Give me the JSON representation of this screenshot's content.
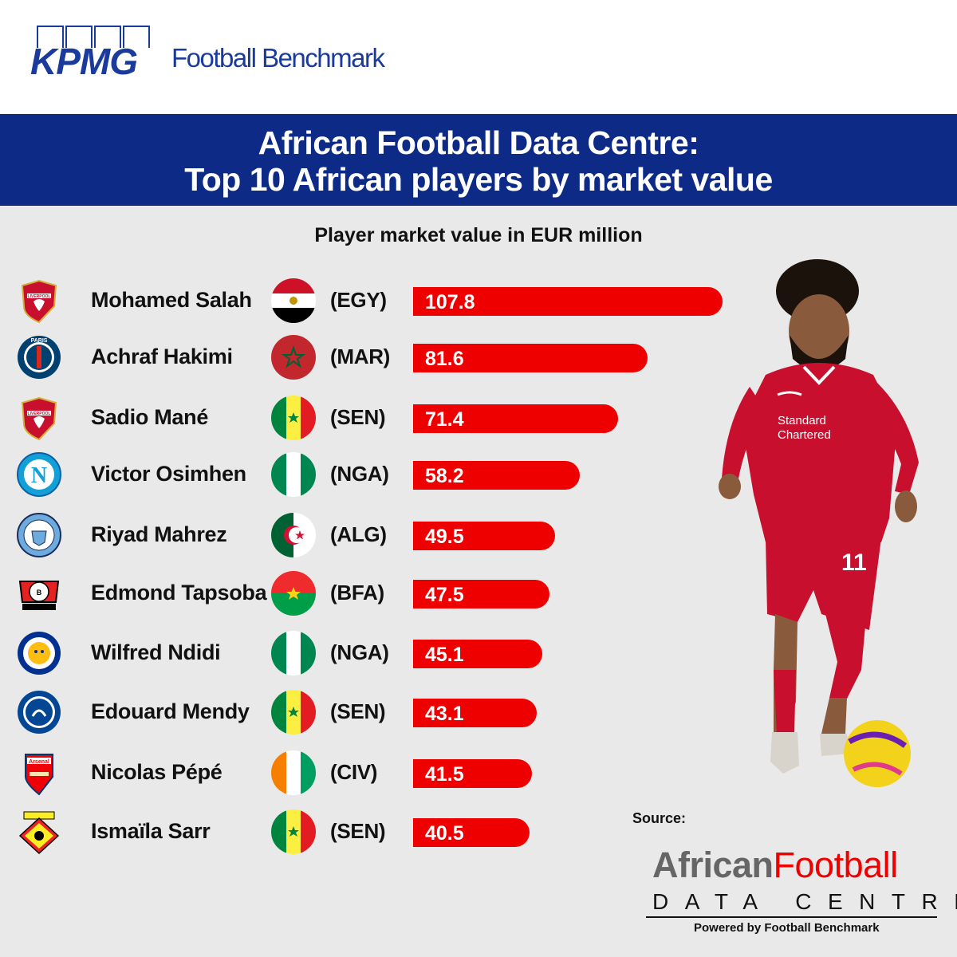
{
  "header": {
    "kpmg_logo_text": "KPMG",
    "brand_text": "Football Benchmark"
  },
  "banner": {
    "title_line1": "African Football Data Centre:",
    "title_line2": "Top 10 African players by market value"
  },
  "colors": {
    "bar": "#ee0000",
    "banner": "#0d2a86",
    "background": "#e9e9e9",
    "brand_blue": "#1a3a9c"
  },
  "chart_data": {
    "type": "bar",
    "orientation": "horizontal",
    "title": "Player market value in EUR million",
    "categories": [
      "Mohamed Salah",
      "Achraf Hakimi",
      "Sadio Mané",
      "Victor Osimhen",
      "Riyad Mahrez",
      "Edmond Tapsoba",
      "Wilfred Ndidi",
      "Edouard Mendy",
      "Nicolas Pépé",
      "Ismaïla Sarr"
    ],
    "values": [
      107.8,
      81.6,
      71.4,
      58.2,
      49.5,
      47.5,
      45.1,
      43.1,
      41.5,
      40.5
    ],
    "value_labels": [
      "107.8",
      "81.6",
      "71.4",
      "58.2",
      "49.5",
      "47.5",
      "45.1",
      "43.1",
      "41.5",
      "40.5"
    ],
    "countries": [
      "(EGY)",
      "(MAR)",
      "(SEN)",
      "(NGA)",
      "(ALG)",
      "(BFA)",
      "(NGA)",
      "(SEN)",
      "(CIV)",
      "(SEN)"
    ],
    "flags": [
      "egypt-flag-icon",
      "morocco-flag-icon",
      "senegal-flag-icon",
      "nigeria-flag-icon",
      "algeria-flag-icon",
      "burkina-faso-flag-icon",
      "nigeria-flag-icon",
      "senegal-flag-icon",
      "ivory-coast-flag-icon",
      "senegal-flag-icon"
    ],
    "clubs": [
      "liverpool-crest-icon",
      "psg-crest-icon",
      "liverpool-crest-icon",
      "napoli-crest-icon",
      "manchester-city-crest-icon",
      "leverkusen-crest-icon",
      "leicester-crest-icon",
      "chelsea-crest-icon",
      "arsenal-crest-icon",
      "watford-crest-icon"
    ],
    "xlabel": "",
    "ylabel": "",
    "grid": false,
    "legend": "none"
  },
  "source": {
    "label": "Source:",
    "logo_part1": "African",
    "logo_part2": "Football",
    "logo_sub": "DATA CENTRE",
    "powered_by": "Powered by Football Benchmark"
  }
}
